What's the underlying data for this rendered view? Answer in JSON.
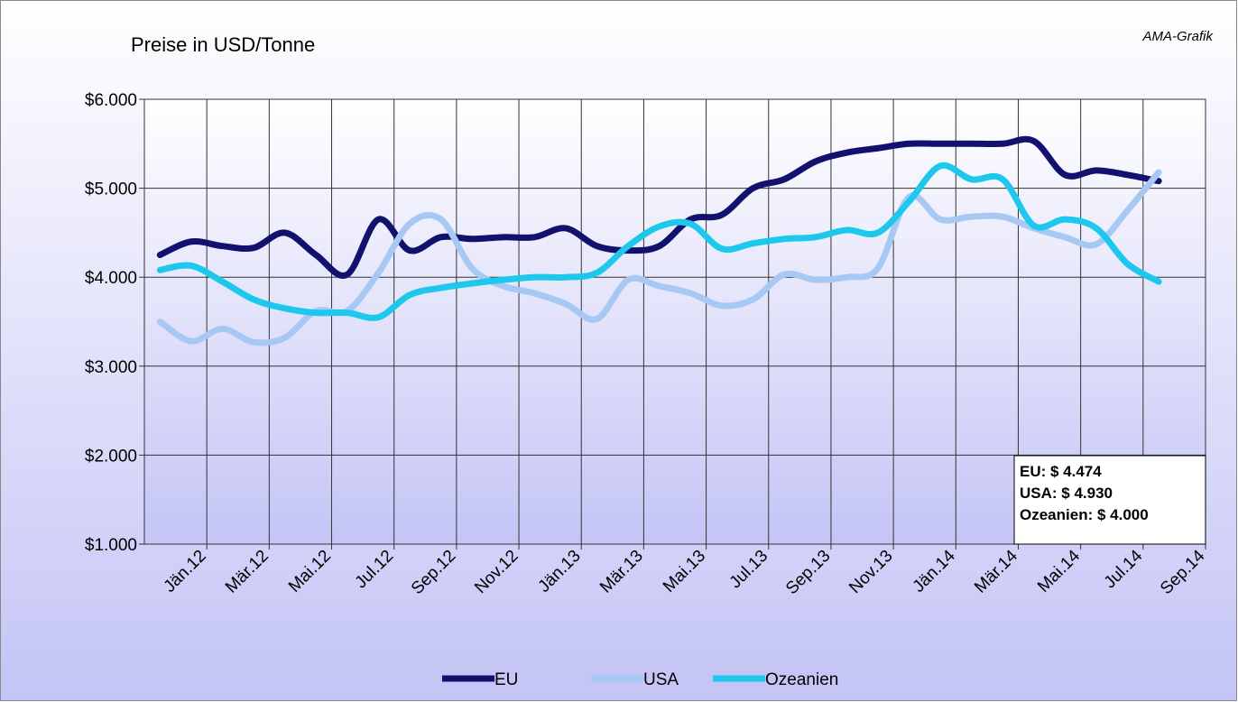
{
  "chart_data": {
    "type": "line",
    "title": "Preise in USD/Tonne",
    "source": "AMA-Grafik",
    "categories": [
      "Jän.12",
      null,
      "Mär.12",
      null,
      "Mai.12",
      null,
      "Jul.12",
      null,
      "Sep.12",
      null,
      "Nov.12",
      null,
      "Jän.13",
      null,
      "Mär.13",
      null,
      "Mai.13",
      null,
      "Jul.13",
      null,
      "Sep.13",
      null,
      "Nov.13",
      null,
      "Jän.14",
      null,
      "Mär.14",
      null,
      "Mai.14",
      null,
      "Jul.14",
      null,
      "Sep.14"
    ],
    "series": [
      {
        "name": "EU",
        "color": "#12126e",
        "values": [
          4250,
          4400,
          4350,
          4330,
          4500,
          4250,
          4030,
          4650,
          4300,
          4450,
          4430,
          4450,
          4450,
          4550,
          4350,
          4300,
          4350,
          4650,
          4700,
          5000,
          5100,
          5300,
          5400,
          5450,
          5500,
          5500,
          5500,
          5500,
          5530,
          5150,
          5200,
          5150,
          5080
        ]
      },
      {
        "name": "USA",
        "color": "#a8c8f4",
        "values": [
          3500,
          3280,
          3420,
          3270,
          3320,
          3620,
          3620,
          4050,
          4600,
          4650,
          4100,
          3900,
          3820,
          3700,
          3530,
          3970,
          3900,
          3820,
          3680,
          3750,
          4030,
          3970,
          4000,
          4100,
          4900,
          4650,
          4680,
          4680,
          4550,
          4450,
          4370,
          4750,
          5180
        ]
      },
      {
        "name": "Ozeanien",
        "color": "#1ec8ec",
        "values": [
          4080,
          4130,
          3950,
          3750,
          3650,
          3600,
          3600,
          3550,
          3800,
          3880,
          3930,
          3970,
          4000,
          4000,
          4050,
          4350,
          4570,
          4600,
          4320,
          4380,
          4430,
          4450,
          4530,
          4500,
          4850,
          5250,
          5100,
          5100,
          4580,
          4650,
          4550,
          4150,
          3950
        ]
      }
    ],
    "annotations": [
      "EU: $ 4.474",
      "USA: $ 4.930",
      "Ozeanien: $ 4.000"
    ],
    "ylim": [
      1000,
      6000
    ],
    "yticks": [
      {
        "value": 1000,
        "label": "$1.000"
      },
      {
        "value": 2000,
        "label": "$2.000"
      },
      {
        "value": 3000,
        "label": "$3.000"
      },
      {
        "value": 4000,
        "label": "$4.000"
      },
      {
        "value": 5000,
        "label": "$5.000"
      },
      {
        "value": 6000,
        "label": "$6.000"
      }
    ],
    "grid": true,
    "legend": "bottom"
  }
}
